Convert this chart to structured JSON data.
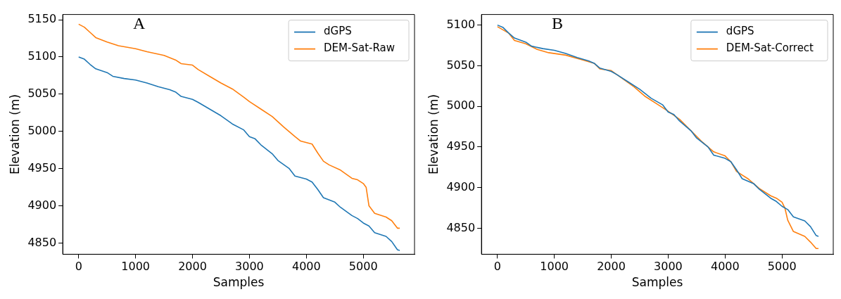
{
  "chart_data": [
    {
      "type": "line",
      "annotations": [
        "A"
      ],
      "xlabel": "Samples",
      "ylabel": "Elevation (m)",
      "xlim": [
        -280,
        5900
      ],
      "xticks": [
        0,
        1000,
        2000,
        3000,
        4000,
        5000
      ],
      "ylim": [
        4835,
        5157
      ],
      "yticks": [
        4850,
        4900,
        4950,
        5000,
        5050,
        5100,
        5150
      ],
      "grid": false,
      "legend": "top right",
      "marker": "none",
      "line_style": "solid",
      "series": [
        {
          "name": "dGPS",
          "color": "#1f77b4",
          "x": [
            0,
            100,
            200,
            300,
            500,
            600,
            800,
            1000,
            1200,
            1400,
            1600,
            1700,
            1800,
            2000,
            2100,
            2300,
            2500,
            2700,
            2900,
            3000,
            3100,
            3200,
            3400,
            3500,
            3700,
            3800,
            4000,
            4100,
            4200,
            4300,
            4500,
            4600,
            4800,
            4900,
            5000,
            5100,
            5200,
            5400,
            5500,
            5600,
            5640
          ],
          "values": [
            5100,
            5097,
            5090,
            5084,
            5079,
            5074,
            5071,
            5069,
            5065,
            5060,
            5056,
            5053,
            5047,
            5043,
            5039,
            5030,
            5021,
            5010,
            5002,
            4993,
            4990,
            4982,
            4970,
            4961,
            4950,
            4940,
            4936,
            4932,
            4922,
            4911,
            4905,
            4898,
            4887,
            4883,
            4877,
            4873,
            4864,
            4859,
            4852,
            4841,
            4840
          ]
        },
        {
          "name": "DEM-Sat-Raw",
          "color": "#ff7f0e",
          "x": [
            0,
            100,
            200,
            300,
            500,
            700,
            1000,
            1200,
            1500,
            1700,
            1800,
            2000,
            2100,
            2300,
            2500,
            2700,
            2900,
            3000,
            3200,
            3400,
            3600,
            3800,
            3900,
            4100,
            4200,
            4300,
            4400,
            4600,
            4800,
            4900,
            5000,
            5050,
            5100,
            5200,
            5400,
            5500,
            5600,
            5640
          ],
          "values": [
            5144,
            5140,
            5133,
            5126,
            5120,
            5115,
            5111,
            5107,
            5102,
            5096,
            5091,
            5089,
            5083,
            5074,
            5065,
            5057,
            5046,
            5040,
            5030,
            5020,
            5006,
            4993,
            4987,
            4983,
            4971,
            4960,
            4955,
            4948,
            4937,
            4935,
            4930,
            4925,
            4900,
            4890,
            4885,
            4880,
            4870,
            4870
          ]
        }
      ]
    },
    {
      "type": "line",
      "annotations": [
        "B"
      ],
      "xlabel": "Samples",
      "ylabel": "Elevation (m)",
      "xlim": [
        -280,
        5900
      ],
      "xticks": [
        0,
        1000,
        2000,
        3000,
        4000,
        5000
      ],
      "ylim": [
        4818,
        5113
      ],
      "yticks": [
        4850,
        4900,
        4950,
        5000,
        5050,
        5100
      ],
      "grid": false,
      "legend": "top right",
      "marker": "none",
      "line_style": "solid",
      "series": [
        {
          "name": "dGPS",
          "color": "#1f77b4",
          "x": [
            0,
            100,
            200,
            300,
            500,
            600,
            800,
            1000,
            1200,
            1400,
            1600,
            1700,
            1800,
            2000,
            2100,
            2300,
            2500,
            2700,
            2900,
            3000,
            3100,
            3200,
            3400,
            3500,
            3700,
            3800,
            4000,
            4100,
            4200,
            4300,
            4500,
            4600,
            4800,
            4900,
            5000,
            5100,
            5200,
            5400,
            5500,
            5600,
            5640
          ],
          "values": [
            5100,
            5097,
            5090,
            5084,
            5079,
            5074,
            5071,
            5069,
            5065,
            5060,
            5056,
            5053,
            5047,
            5043,
            5039,
            5030,
            5021,
            5010,
            5002,
            4993,
            4990,
            4982,
            4970,
            4961,
            4950,
            4940,
            4936,
            4932,
            4922,
            4911,
            4905,
            4898,
            4887,
            4883,
            4877,
            4873,
            4864,
            4859,
            4852,
            4841,
            4840
          ]
        },
        {
          "name": "DEM-Sat-Correct",
          "color": "#ff7f0e",
          "x": [
            0,
            200,
            300,
            500,
            700,
            900,
            1200,
            1500,
            1700,
            1800,
            2000,
            2200,
            2400,
            2600,
            2800,
            3000,
            3200,
            3400,
            3600,
            3800,
            4000,
            4100,
            4200,
            4400,
            4500,
            4600,
            4800,
            4900,
            5000,
            5050,
            5100,
            5200,
            5400,
            5500,
            5600,
            5640
          ],
          "values": [
            5098,
            5090,
            5081,
            5077,
            5070,
            5066,
            5063,
            5057,
            5053,
            5046,
            5044,
            5034,
            5024,
            5012,
            5003,
            4994,
            4984,
            4970,
            4956,
            4944,
            4939,
            4932,
            4920,
            4911,
            4905,
            4899,
            4890,
            4887,
            4882,
            4875,
            4860,
            4846,
            4840,
            4833,
            4825,
            4825
          ]
        }
      ]
    }
  ]
}
